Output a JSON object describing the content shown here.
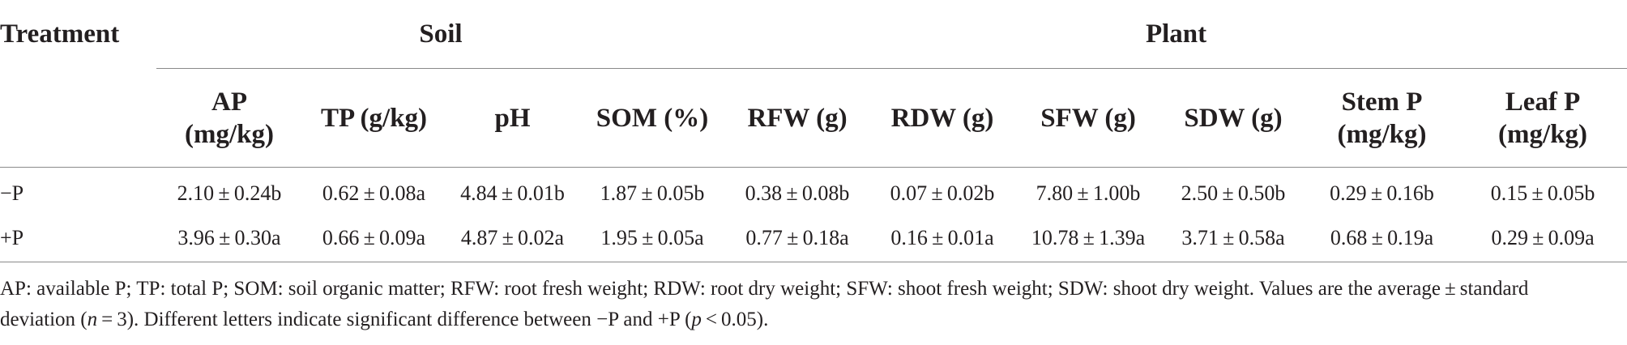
{
  "table": {
    "treatment_header": "Treatment",
    "groups": [
      {
        "label": "Soil"
      },
      {
        "label": "Plant"
      }
    ],
    "columns": [
      {
        "line1": "AP",
        "line2": "(mg/kg)"
      },
      {
        "line1": "TP (g/kg)",
        "line2": ""
      },
      {
        "line1": "pH",
        "line2": ""
      },
      {
        "line1": "SOM (%)",
        "line2": ""
      },
      {
        "line1": "RFW (g)",
        "line2": ""
      },
      {
        "line1": "RDW (g)",
        "line2": ""
      },
      {
        "line1": "SFW (g)",
        "line2": ""
      },
      {
        "line1": "SDW (g)",
        "line2": ""
      },
      {
        "line1": "Stem P",
        "line2": "(mg/kg)"
      },
      {
        "line1": "Leaf P",
        "line2": "(mg/kg)"
      }
    ],
    "rows": [
      {
        "label": "−P",
        "cells": [
          "2.10 ± 0.24b",
          "0.62 ± 0.08a",
          "4.84 ± 0.01b",
          "1.87 ± 0.05b",
          "0.38 ± 0.08b",
          "0.07 ± 0.02b",
          "7.80 ± 1.00b",
          "2.50 ± 0.50b",
          "0.29 ± 0.16b",
          "0.15 ± 0.05b"
        ]
      },
      {
        "label": "+P",
        "cells": [
          "3.96 ± 0.30a",
          "0.66 ± 0.09a",
          "4.87 ± 0.02a",
          "1.95 ± 0.05a",
          "0.77 ± 0.18a",
          "0.16 ± 0.01a",
          "10.78 ± 1.39a",
          "3.71 ± 0.58a",
          "0.68 ± 0.19a",
          "0.29 ± 0.09a"
        ]
      }
    ]
  },
  "footnote": {
    "line1": "AP: available P; TP: total P; SOM: soil organic matter; RFW: root fresh weight; RDW: root dry weight; SFW: shoot fresh weight; SDW: shoot dry weight. Values are the average ± standard",
    "line2_a": "deviation (",
    "line2_n": "n",
    "line2_b": " = 3). Different letters indicate significant difference between −P and +P (",
    "line2_p": "p",
    "line2_c": " < 0.05)."
  }
}
